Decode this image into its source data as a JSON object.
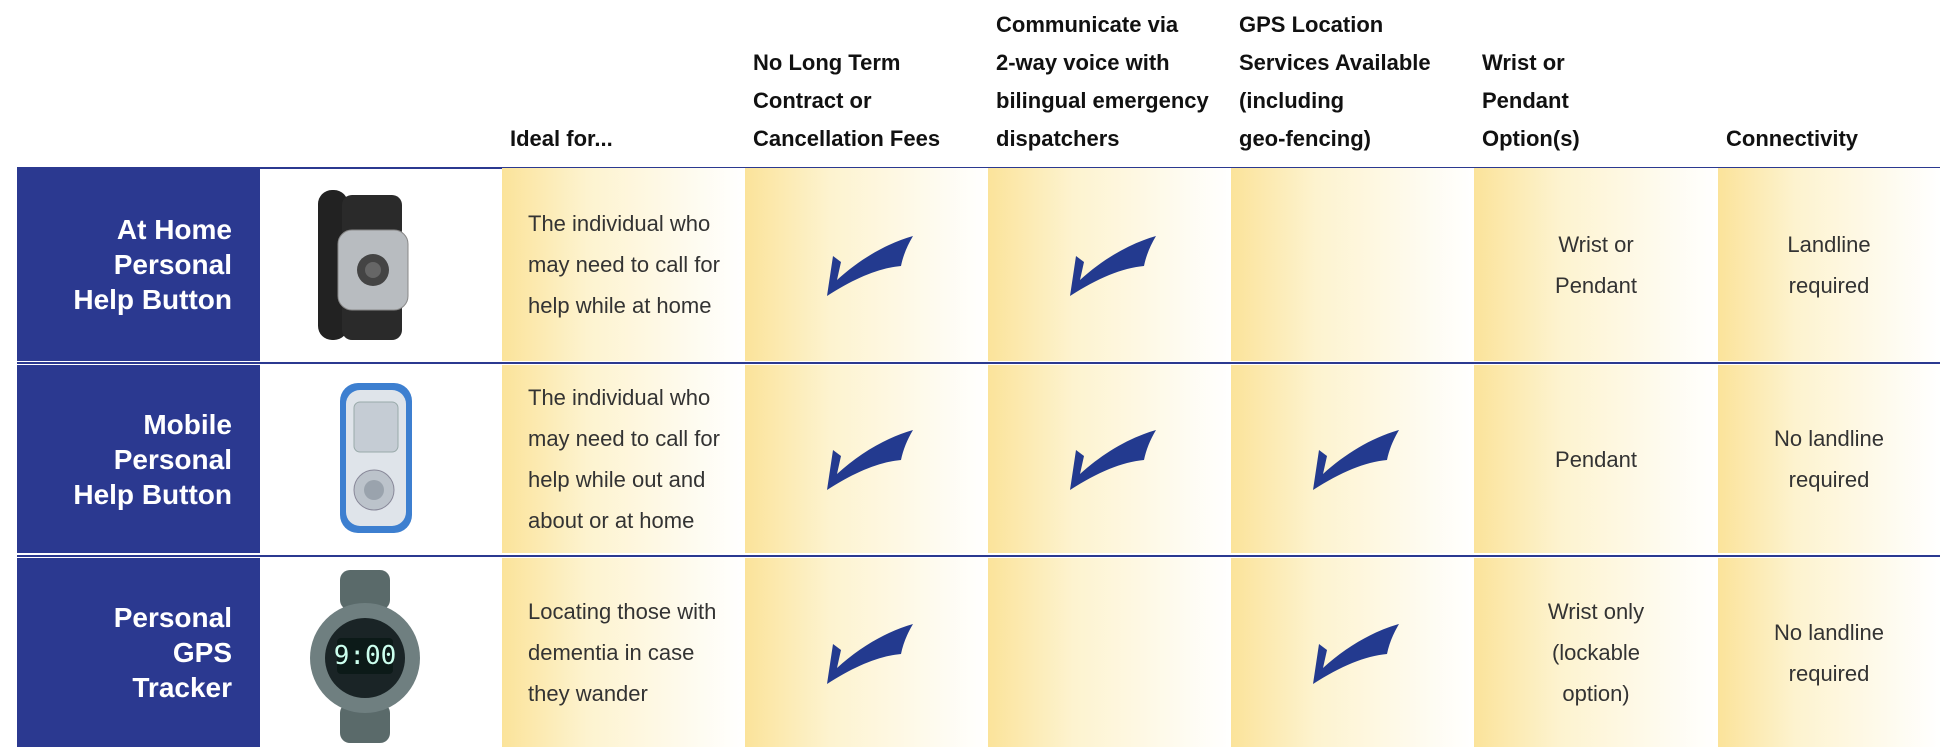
{
  "headers": [
    [
      "Ideal for..."
    ],
    [
      "No Long Term",
      "Contract or",
      "Cancellation Fees"
    ],
    [
      "Communicate via",
      "2-way voice with",
      "bilingual emergency",
      "dispatchers"
    ],
    [
      "GPS Location",
      "Services Available",
      "(including",
      "geo-fencing)"
    ],
    [
      "Wrist or",
      "Pendant",
      "Option(s)"
    ],
    [
      "Connectivity"
    ]
  ],
  "rows": [
    {
      "label": [
        "At Home",
        "Personal",
        "Help Button"
      ],
      "ideal_for": [
        "The individual who",
        "may need to call for",
        "help while at home"
      ],
      "no_contract": true,
      "two_way_voice": true,
      "gps": false,
      "wear": [
        "Wrist or",
        "Pendant"
      ],
      "connectivity": [
        "Landline",
        "required"
      ]
    },
    {
      "label": [
        "Mobile",
        "Personal",
        "Help Button"
      ],
      "ideal_for": [
        "The individual who",
        "may need to call for",
        "help while out and",
        "about or at home"
      ],
      "no_contract": true,
      "two_way_voice": true,
      "gps": true,
      "wear": [
        "Pendant"
      ],
      "connectivity": [
        "No landline",
        "required"
      ]
    },
    {
      "label": [
        "Personal",
        "GPS",
        "Tracker"
      ],
      "ideal_for": [
        "Locating those with",
        "dementia in case",
        "they wander"
      ],
      "no_contract": true,
      "two_way_voice": false,
      "gps": true,
      "wear": [
        "Wrist only",
        "(lockable",
        "option)"
      ],
      "connectivity": [
        "No landline",
        "required"
      ]
    }
  ]
}
